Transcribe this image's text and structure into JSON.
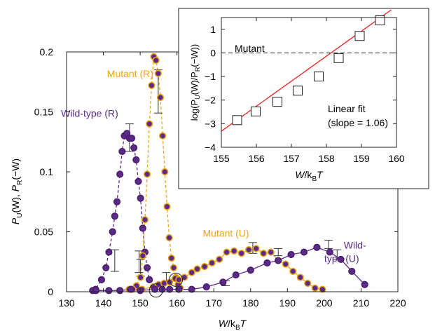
{
  "colors": {
    "wild_type": "#5b2a86",
    "mutant": "#f2a516",
    "fit": "#e8211c",
    "axis": "#222222",
    "marker_edge_wild": "#4a1f70",
    "marker_edge_mutant": "#e8a115"
  },
  "chart_data": [
    {
      "type": "line",
      "role": "main",
      "xlabel_parts": {
        "main": "W",
        "sep": "/k",
        "sub": "B",
        "end": "T"
      },
      "ylabel_parts": {
        "p1": "P",
        "s1": "U",
        "m1": "(W), ",
        "p2": "P",
        "s2": "R",
        "m2": "(−W)"
      },
      "xlim": [
        130,
        220
      ],
      "ylim": [
        0,
        0.2
      ],
      "xticks": [
        130,
        140,
        150,
        160,
        170,
        180,
        190,
        200,
        210,
        220
      ],
      "xtick_labels": [
        "130",
        "140",
        "150",
        "160",
        "170",
        "180",
        "190",
        "200",
        "210",
        "220"
      ],
      "yticks": [
        0,
        0.05,
        0.1,
        0.15,
        0.2
      ],
      "ytick_labels": [
        "0",
        "0.05",
        "0.1",
        "0.15",
        "0.2"
      ],
      "series": [
        {
          "name": "Wild-type (R)",
          "color_key": "wild_type",
          "style": "dashed",
          "x": [
            137.1,
            137.9,
            139.5,
            140.7,
            141.5,
            142.5,
            143.1,
            143.7,
            144.5,
            145.1,
            145.7,
            146.4,
            147.1,
            147.7,
            148.3,
            148.9,
            149.5,
            150.1,
            150.7,
            151.3,
            151.9,
            152.5
          ],
          "y": [
            0.001,
            0.002,
            0.01,
            0.02,
            0.033,
            0.05,
            0.063,
            0.075,
            0.098,
            0.117,
            0.13,
            0.132,
            0.128,
            0.128,
            0.12,
            0.11,
            0.092,
            0.078,
            0.053,
            0.033,
            0.02,
            0.01
          ]
        },
        {
          "name": "Mutant (R)",
          "color_key": "mutant",
          "style": "dashed",
          "x": [
            147.0,
            149.0,
            150.1,
            150.7,
            151.3,
            151.9,
            152.5,
            153.1,
            153.7,
            154.3,
            154.9,
            155.5,
            156.1,
            156.7,
            157.3,
            157.9,
            158.5,
            159.1,
            159.7,
            160.3,
            160.9
          ],
          "y": [
            0.002,
            0.005,
            0.012,
            0.03,
            0.06,
            0.098,
            0.14,
            0.172,
            0.196,
            0.193,
            0.182,
            0.162,
            0.13,
            0.1,
            0.071,
            0.045,
            0.028,
            0.02,
            0.012,
            0.006,
            0.003
          ]
        },
        {
          "name": "Mutant (U)",
          "color_key": "mutant",
          "style": "solid",
          "x": [
            148.0,
            150.5,
            153.5,
            155.0,
            156.5,
            158.0,
            159.5,
            160.5,
            162.0,
            164.0,
            165.5,
            167.5,
            169.5,
            171.5,
            173.5,
            175.5,
            177.5,
            179.5,
            181.5,
            183.5,
            185.5,
            187.5,
            189.5,
            191.5,
            193.5,
            195.5,
            197.5,
            199.5
          ],
          "y": [
            0.002,
            0.002,
            0.004,
            0.006,
            0.007,
            0.008,
            0.011,
            0.01,
            0.012,
            0.016,
            0.019,
            0.021,
            0.024,
            0.027,
            0.033,
            0.034,
            0.032,
            0.035,
            0.036,
            0.032,
            0.033,
            0.026,
            0.023,
            0.017,
            0.012,
            0.007,
            0.003,
            0.002
          ]
        },
        {
          "name": "Wild-type (U)",
          "color_key": "wild_type",
          "style": "solid",
          "x": [
            138.0,
            141.5,
            144.5,
            147.5,
            150.0,
            154.0,
            156.0,
            158.0,
            160.5,
            164.0,
            168.0,
            172.5,
            176.0,
            180.0,
            184.5,
            187.5,
            191.0,
            194.5,
            198.0,
            201.5,
            204.5,
            207.5,
            211.0
          ],
          "y": [
            0.001,
            0.001,
            0.001,
            0.002,
            0.001,
            0.002,
            0.002,
            0.002,
            0.002,
            0.002,
            0.004,
            0.008,
            0.014,
            0.018,
            0.024,
            0.026,
            0.031,
            0.033,
            0.037,
            0.033,
            0.027,
            0.017,
            0.006
          ]
        }
      ],
      "error_bars": [
        {
          "series": "Wild-type (R)",
          "x": 147.1,
          "y": 0.128,
          "lo": 0.117,
          "hi": 0.14
        },
        {
          "series": "Wild-type (R)",
          "x": 143.1,
          "y": 0.026,
          "lo": 0.017,
          "hi": 0.035
        },
        {
          "series": "Wild-type (R)",
          "x": 149.7,
          "y": 0.025,
          "lo": 0.016,
          "hi": 0.034
        },
        {
          "series": "Mutant (R)",
          "x": 154.9,
          "y": 0.182,
          "lo": 0.149,
          "hi": 0.185
        },
        {
          "series": "Mutant (R)",
          "x": 150.1,
          "y": 0.018,
          "lo": 0.013,
          "hi": 0.027
        },
        {
          "series": "Mutant (U)",
          "x": 157.1,
          "y": 0.011,
          "lo": 0.006,
          "hi": 0.016
        },
        {
          "series": "Mutant (U)",
          "x": 180.6,
          "y": 0.036,
          "lo": 0.032,
          "hi": 0.041
        },
        {
          "series": "Mutant (U)",
          "x": 201.2,
          "y": 0.04,
          "lo": 0.036,
          "hi": 0.043
        },
        {
          "series": "Mutant (U)",
          "x": 187.5,
          "y": 0.033,
          "lo": 0.03,
          "hi": 0.036
        },
        {
          "series": "Wild-type (U)",
          "x": 203.5,
          "y": 0.031,
          "lo": 0.027,
          "hi": 0.035
        },
        {
          "series": "Wild-type (U)",
          "x": 173.2,
          "y": 0.007,
          "lo": 0.005,
          "hi": 0.009
        }
      ],
      "circled_points": [
        {
          "x": 154.3,
          "y": 0.001
        },
        {
          "x": 159.7,
          "y": 0.01
        }
      ],
      "annotations": [
        {
          "text": "Mutant (R)",
          "x": 141.0,
          "y": 0.179,
          "color_key": "mutant"
        },
        {
          "text": "Wild-type (R)",
          "x": 128.5,
          "y": 0.146,
          "color_key": "wild_type"
        },
        {
          "text": "Mutant (U)",
          "x": 167.0,
          "y": 0.046,
          "color_key": "mutant"
        },
        {
          "text": "Wild-",
          "x": 205.3,
          "y": 0.036,
          "color_key": "wild_type"
        },
        {
          "text": "type (U)",
          "x": 200.0,
          "y": 0.025,
          "color_key": "wild_type"
        }
      ]
    },
    {
      "type": "scatter",
      "role": "inset",
      "xlabel_parts": {
        "main": "W",
        "sep": "/k",
        "sub": "B",
        "end": "T"
      },
      "ylabel_parts": {
        "a": "log(P",
        "s1": "U",
        "b": "(W)/P",
        "s2": "R",
        "c": "(−W))"
      },
      "xlim": [
        155,
        160
      ],
      "ylim": [
        -4,
        1.5
      ],
      "xticks": [
        155,
        156,
        157,
        158,
        159,
        160
      ],
      "xtick_labels": [
        "155",
        "156",
        "157",
        "158",
        "159",
        "160"
      ],
      "yticks": [
        -4,
        -3,
        -2,
        -1,
        0,
        1
      ],
      "ytick_labels": [
        "−4",
        "−3",
        "−2",
        "−1",
        "0",
        "1"
      ],
      "points": {
        "x": [
          155.45,
          155.98,
          156.6,
          157.18,
          157.78,
          158.35,
          158.95,
          159.53
        ],
        "y": [
          -2.85,
          -2.48,
          -2.07,
          -1.6,
          -1.0,
          -0.22,
          0.72,
          1.38
        ]
      },
      "fit": {
        "slope": 1.06,
        "x0": 158.13,
        "x_range": [
          155,
          159.85
        ]
      },
      "zero_line": 0,
      "labels": {
        "mutant": "Mutant",
        "fit_line1": "Linear fit",
        "fit_line2": "(slope = 1.06)"
      }
    }
  ]
}
